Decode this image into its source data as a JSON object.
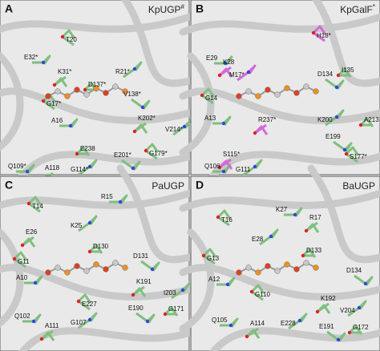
{
  "panels": [
    {
      "letter": "A",
      "title": "KpUGP",
      "title_mark": "#",
      "labels": [
        "T20",
        "E32*",
        "K31*",
        "R21*",
        "D137*",
        "V138*",
        "G17*",
        "A16",
        "K202*",
        "V214*",
        "E238",
        "E201*",
        "G179*",
        "Q109*",
        "A118",
        "G114*"
      ]
    },
    {
      "letter": "B",
      "title": "KpGalF",
      "title_mark": "*",
      "labels": [
        "H18*",
        "E29",
        "K28",
        "M17*",
        "I135",
        "D134",
        "G14",
        "A13",
        "R237*",
        "K200",
        "A213",
        "E199",
        "S177*",
        "Q106",
        "S115*",
        "G111"
      ]
    },
    {
      "letter": "C",
      "title": "PaUGP",
      "labels": [
        "T14",
        "R15",
        "E26",
        "K25",
        "D130",
        "D131",
        "G11",
        "A10",
        "K191",
        "I203",
        "G171",
        "E190",
        "E227",
        "Q102",
        "A111",
        "G107"
      ]
    },
    {
      "letter": "D",
      "title": "BaUGP",
      "labels": [
        "T16",
        "K27",
        "R17",
        "E28",
        "D133",
        "D134",
        "G13",
        "A12",
        "K192",
        "V204",
        "G172",
        "E191",
        "G110",
        "Q105",
        "A114",
        "E228"
      ]
    }
  ]
}
